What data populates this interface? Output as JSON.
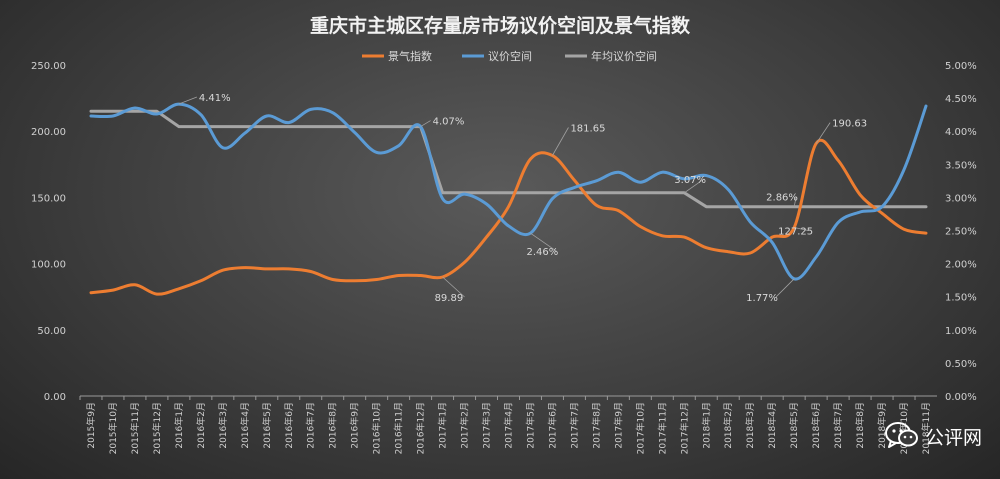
{
  "chart_data": {
    "type": "line",
    "title": "重庆市主城区存量房市场议价空间及景气指数",
    "legend_placement": "top-center",
    "grid": false,
    "y_left": {
      "range": [
        0,
        250
      ],
      "ticks": [
        "0.00",
        "50.00",
        "100.00",
        "150.00",
        "200.00",
        "250.00"
      ]
    },
    "y_right": {
      "range": [
        0,
        5
      ],
      "ticks": [
        "0.00%",
        "0.50%",
        "1.00%",
        "1.50%",
        "2.00%",
        "2.50%",
        "3.00%",
        "3.50%",
        "4.00%",
        "4.50%",
        "5.00%"
      ]
    },
    "categories": [
      "2015年9月",
      "2015年10月",
      "2015年11月",
      "2015年12月",
      "2016年1月",
      "2016年2月",
      "2016年3月",
      "2016年4月",
      "2016年5月",
      "2016年6月",
      "2016年7月",
      "2016年8月",
      "2016年9月",
      "2016年10月",
      "2016年11月",
      "2016年12月",
      "2017年1月",
      "2017年2月",
      "2017年3月",
      "2017年4月",
      "2017年5月",
      "2017年6月",
      "2017年7月",
      "2017年8月",
      "2017年9月",
      "2017年10月",
      "2017年11月",
      "2017年12月",
      "2018年1月",
      "2018年2月",
      "2018年3月",
      "2018年4月",
      "2018年5月",
      "2018年6月",
      "2018年7月",
      "2018年8月",
      "2018年9月",
      "2018年10月",
      "2018年11月"
    ],
    "series": [
      {
        "name": "景气指数",
        "axis": "left",
        "color": "#ed7d31",
        "values": [
          78,
          80,
          84,
          77,
          81,
          87,
          95,
          97,
          96,
          96,
          94,
          88,
          87,
          88,
          91,
          91,
          89.89,
          101,
          120,
          143,
          179,
          181.65,
          163,
          144,
          140,
          128,
          121,
          120,
          112,
          109,
          108,
          120,
          127.25,
          190.63,
          178,
          152,
          138,
          126,
          123
        ]
      },
      {
        "name": "议价空间",
        "axis": "right",
        "color": "#5b9bd5",
        "values": [
          4.23,
          4.23,
          4.35,
          4.26,
          4.41,
          4.25,
          3.75,
          3.97,
          4.23,
          4.13,
          4.33,
          4.28,
          3.98,
          3.68,
          3.78,
          4.07,
          2.98,
          3.05,
          2.9,
          2.57,
          2.46,
          2.98,
          3.15,
          3.25,
          3.38,
          3.23,
          3.38,
          3.28,
          3.33,
          3.12,
          2.63,
          2.32,
          1.77,
          2.1,
          2.62,
          2.78,
          2.86,
          3.42,
          4.38
        ]
      },
      {
        "name": "年均议价空间",
        "axis": "right",
        "color": "#a5a5a5",
        "values": [
          4.3,
          4.3,
          4.3,
          4.3,
          4.07,
          4.07,
          4.07,
          4.07,
          4.07,
          4.07,
          4.07,
          4.07,
          4.07,
          4.07,
          4.07,
          4.07,
          3.07,
          3.07,
          3.07,
          3.07,
          3.07,
          3.07,
          3.07,
          3.07,
          3.07,
          3.07,
          3.07,
          3.07,
          2.86,
          2.86,
          2.86,
          2.86,
          2.86,
          2.86,
          2.86,
          2.86,
          2.86,
          2.86,
          2.86
        ]
      }
    ],
    "annotations": [
      {
        "series": 1,
        "index": 4,
        "text": "4.41%"
      },
      {
        "series": 2,
        "index": 15,
        "text": "4.07%"
      },
      {
        "series": 0,
        "index": 16,
        "text": "89.89"
      },
      {
        "series": 0,
        "index": 21,
        "text": "181.65"
      },
      {
        "series": 1,
        "index": 20,
        "text": "2.46%"
      },
      {
        "series": 2,
        "index": 27,
        "text": "3.07%"
      },
      {
        "series": 2,
        "index": 32,
        "text": "2.86%"
      },
      {
        "series": 0,
        "index": 32,
        "text": "127.25"
      },
      {
        "series": 0,
        "index": 33,
        "text": "190.63"
      },
      {
        "series": 1,
        "index": 32,
        "text": "1.77%"
      }
    ]
  },
  "watermark": {
    "text": "公评网",
    "icon": "wechat-icon"
  }
}
